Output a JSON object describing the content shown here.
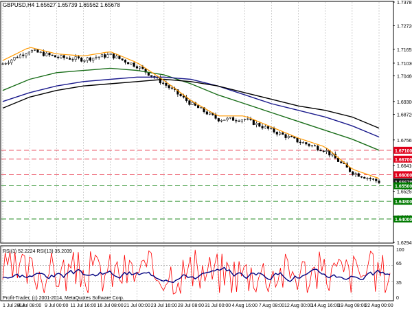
{
  "window": {
    "header": "GBPUSD,H4  1.65627 1.65739 1.65562 1.65678",
    "copyright": "Profit-Trader, (c) 2001-2014, MetaQuotes Software Corp."
  },
  "rsi_panel": {
    "header": "RSI(3) 52.2224   RSI(13) 35.2039",
    "levels": [
      "100",
      "65",
      "35",
      "0"
    ]
  },
  "price_axis": {
    "ticks": [
      "1.73785",
      "1.72720",
      "1.71655",
      "1.71030",
      "1.70460",
      "1.69300",
      "1.68720",
      "1.67565",
      "1.66410",
      "1.65255",
      "1.64100",
      "1.62945"
    ],
    "tick_values": [
      1.73785,
      1.7272,
      1.71655,
      1.7103,
      1.7046,
      1.693,
      1.6872,
      1.67565,
      1.6641,
      1.65255,
      1.641,
      1.62945
    ]
  },
  "time_axis": {
    "labels": [
      "1 Jul 2014",
      "4 Jul 08:00",
      "9 Jul 00:00",
      "11 Jul 16:00",
      "16 Jul 08:00",
      "21 Jul 00:00",
      "23 Jul 16:00",
      "28 Jul 08:00",
      "31 Jul 00:00",
      "4 Aug 16:00",
      "7 Aug 08:00",
      "12 Aug 00:00",
      "14 Aug 16:00",
      "19 Aug 08:00",
      "22 Aug 00:00"
    ]
  },
  "level_tags": [
    {
      "text": "1.67100",
      "value": 1.671,
      "kind": "resistance"
    },
    {
      "text": "1.66700",
      "value": 1.667,
      "kind": "resistance"
    },
    {
      "text": "1.66000",
      "value": 1.66,
      "kind": "resistance"
    },
    {
      "text": "1.65678",
      "value": 1.65678,
      "kind": "current"
    },
    {
      "text": "1.65500",
      "value": 1.655,
      "kind": "support"
    },
    {
      "text": "1.64800",
      "value": 1.648,
      "kind": "support"
    },
    {
      "text": "1.64000",
      "value": 1.64,
      "kind": "support"
    }
  ],
  "colors": {
    "resistance": "#e0001a",
    "support": "#007a00",
    "ma_fast": "#ff9900",
    "ma_mid": "#1a6e1a",
    "ma_slow_a": "#1a1a8c",
    "ma_slow_b": "#000000",
    "rsi_fast": "#ff0000",
    "rsi_slow": "#000080",
    "current_tag": "#1a1a1a"
  },
  "chart_data": {
    "type": "line",
    "symbol": "GBPUSD",
    "timeframe": "H4",
    "last_bar": {
      "open": 1.65627,
      "high": 1.65739,
      "low": 1.65562,
      "close": 1.65678
    },
    "x": [
      "1 Jul",
      "4 Jul",
      "9 Jul",
      "11 Jul",
      "16 Jul",
      "21 Jul",
      "23 Jul",
      "28 Jul",
      "31 Jul",
      "4 Aug",
      "7 Aug",
      "12 Aug",
      "14 Aug",
      "19 Aug",
      "22 Aug"
    ],
    "series": [
      {
        "values": [
          1.71,
          1.716,
          1.713,
          1.712,
          1.714,
          1.709,
          1.701,
          1.692,
          1.685,
          1.685,
          1.68,
          1.675,
          1.671,
          1.661,
          1.6568
        ]
      },
      {
        "values": [
          1.698,
          1.703,
          1.706,
          1.707,
          1.708,
          1.707,
          1.705,
          1.701,
          1.696,
          1.692,
          1.688,
          1.684,
          1.68,
          1.676,
          1.671
        ]
      },
      {
        "values": [
          1.693,
          1.697,
          1.7,
          1.702,
          1.703,
          1.704,
          1.704,
          1.703,
          1.7,
          1.696,
          1.692,
          1.689,
          1.686,
          1.682,
          1.677
        ]
      },
      {
        "values": [
          1.69,
          1.695,
          1.698,
          1.7,
          1.701,
          1.702,
          1.703,
          1.702,
          1.7,
          1.697,
          1.694,
          1.691,
          1.689,
          1.686,
          1.681
        ]
      }
    ],
    "ylim": [
      1.62945,
      1.73785
    ]
  }
}
